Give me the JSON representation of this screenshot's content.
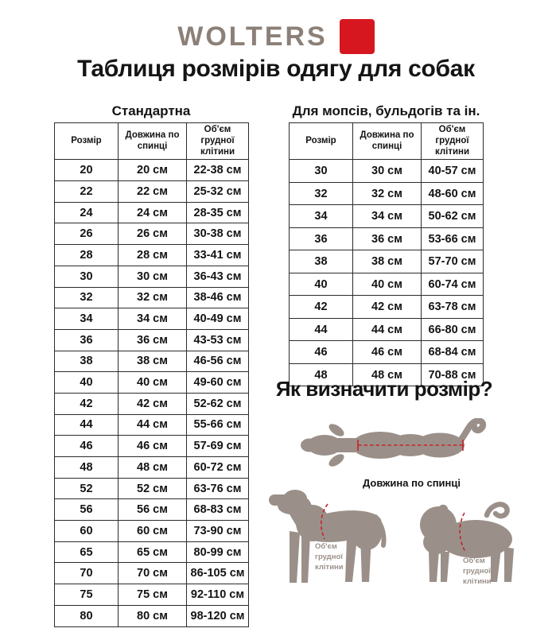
{
  "brand": {
    "logo_text": "WOLTERS"
  },
  "colors": {
    "accent": "#d6171f",
    "logo": "#8b8078",
    "silhouette": "#9b9089",
    "dash": "#c4242b"
  },
  "page_title": "Таблиця розмірів одягу для собак",
  "tables": {
    "standard": {
      "title": "Стандартна",
      "headers": [
        "Розмір",
        "Довжина по спинці",
        "Об'єм грудної клітини"
      ],
      "rows": [
        [
          "20",
          "20 см",
          "22-38 см"
        ],
        [
          "22",
          "22 см",
          "25-32 см"
        ],
        [
          "24",
          "24 см",
          "28-35 см"
        ],
        [
          "26",
          "26 см",
          "30-38 см"
        ],
        [
          "28",
          "28 см",
          "33-41 см"
        ],
        [
          "30",
          "30 см",
          "36-43 см"
        ],
        [
          "32",
          "32 см",
          "38-46 см"
        ],
        [
          "34",
          "34 см",
          "40-49 см"
        ],
        [
          "36",
          "36 см",
          "43-53 см"
        ],
        [
          "38",
          "38 см",
          "46-56 см"
        ],
        [
          "40",
          "40 см",
          "49-60 см"
        ],
        [
          "42",
          "42 см",
          "52-62 см"
        ],
        [
          "44",
          "44 см",
          "55-66 см"
        ],
        [
          "46",
          "46 см",
          "57-69 см"
        ],
        [
          "48",
          "48 см",
          "60-72 см"
        ],
        [
          "52",
          "52 см",
          "63-76 см"
        ],
        [
          "56",
          "56 см",
          "68-83 см"
        ],
        [
          "60",
          "60 см",
          "73-90 см"
        ],
        [
          "65",
          "65 см",
          "80-99 см"
        ],
        [
          "70",
          "70 см",
          "86-105 см"
        ],
        [
          "75",
          "75 см",
          "92-110 см"
        ],
        [
          "80",
          "80 см",
          "98-120 см"
        ]
      ]
    },
    "pugs": {
      "title": "Для мопсів, бульдогів та ін.",
      "headers": [
        "Розмір",
        "Довжина по спинці",
        "Об'єм грудної клітини"
      ],
      "rows": [
        [
          "30",
          "30 см",
          "40-57 см"
        ],
        [
          "32",
          "32 см",
          "48-60 см"
        ],
        [
          "34",
          "34 см",
          "50-62 см"
        ],
        [
          "36",
          "36 см",
          "53-66 см"
        ],
        [
          "38",
          "38 см",
          "57-70 см"
        ],
        [
          "40",
          "40 см",
          "60-74 см"
        ],
        [
          "42",
          "42 см",
          "63-78 см"
        ],
        [
          "44",
          "44 см",
          "66-80 см"
        ],
        [
          "46",
          "46 см",
          "68-84 см"
        ],
        [
          "48",
          "48 см",
          "70-88 см"
        ]
      ]
    }
  },
  "guide": {
    "title": "Як визначити розмір?",
    "back_length_label": "Довжина по спинці",
    "chest_label": "Об'єм грудної клітини"
  }
}
